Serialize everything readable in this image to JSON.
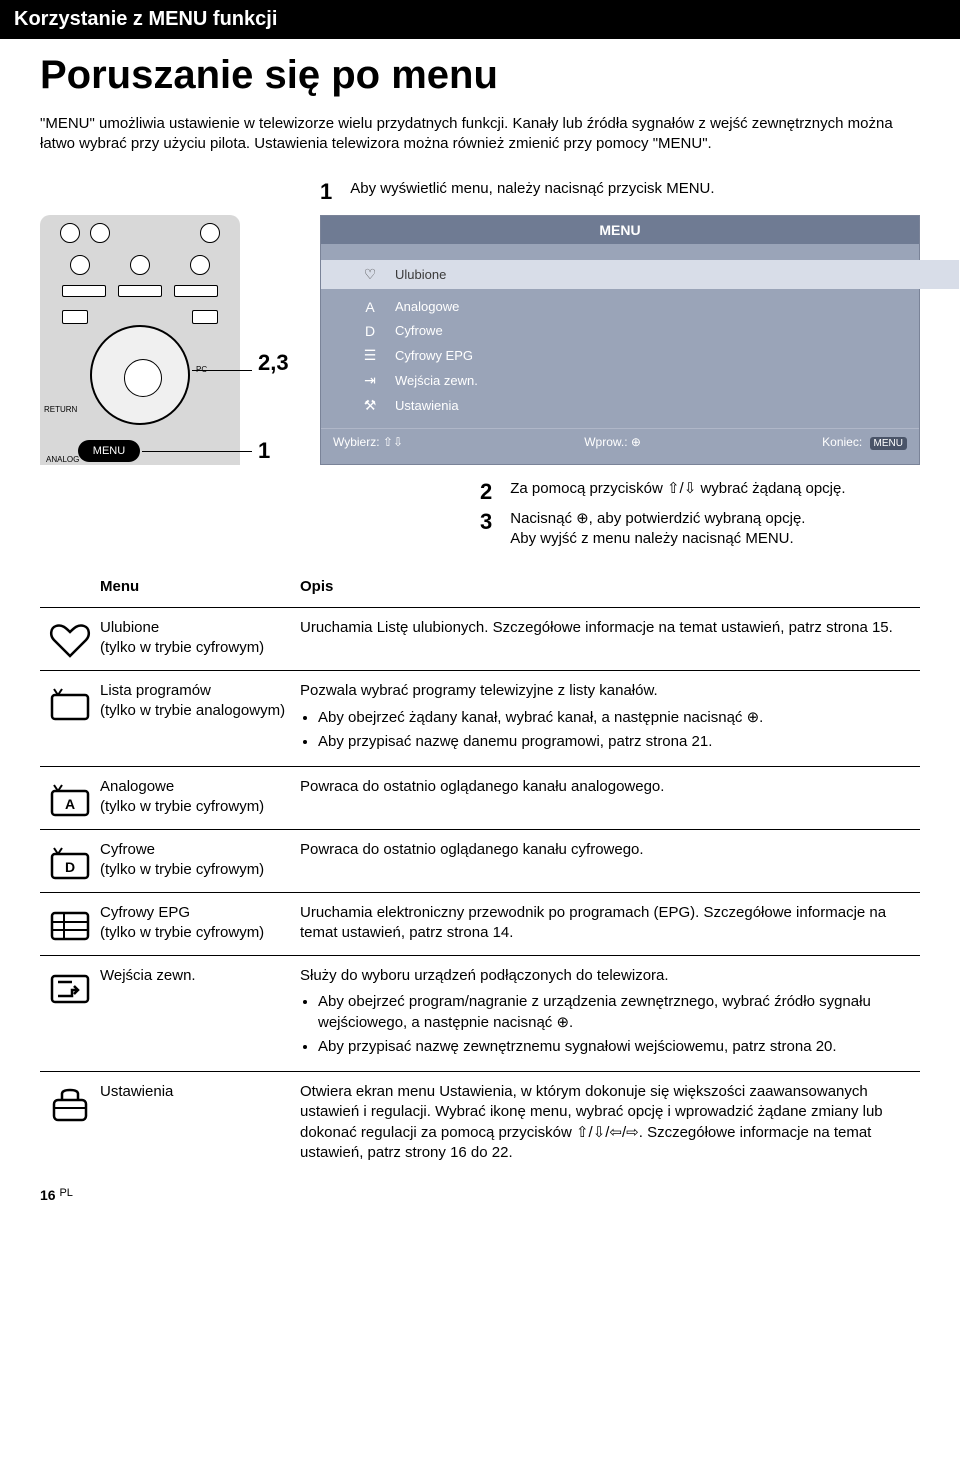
{
  "section_header": "Korzystanie z MENU funkcji",
  "title": "Poruszanie się po menu",
  "intro": "\"MENU\" umożliwia ustawienie w telewizorze wielu przydatnych funkcji. Kanały lub źródła sygnałów z wejść zewnętrznych można łatwo wybrać przy użyciu pilota. Ustawienia telewizora można również zmienić przy pomocy \"MENU\".",
  "step1_num": "1",
  "step1_text": "Aby wyświetlić menu, należy nacisnąć przycisk MENU.",
  "remote": {
    "return": "RETURN",
    "pc": "PC",
    "analog": "ANALOG",
    "menu": "MENU",
    "c23": "2,3",
    "c1": "1"
  },
  "menu_panel": {
    "title": "MENU",
    "items": [
      {
        "icon": "♡",
        "label": "Ulubione",
        "selected": true
      },
      {
        "icon": "A",
        "label": "Analogowe",
        "selected": false
      },
      {
        "icon": "D",
        "label": "Cyfrowe",
        "selected": false
      },
      {
        "icon": "☰",
        "label": "Cyfrowy EPG",
        "selected": false
      },
      {
        "icon": "⇥",
        "label": "Wejścia zewn.",
        "selected": false
      },
      {
        "icon": "⚒",
        "label": "Ustawienia",
        "selected": false
      }
    ],
    "footer_select": "Wybierz:",
    "footer_select_icon": "⇧⇩",
    "footer_enter": "Wprow.:",
    "footer_enter_icon": "⊕",
    "footer_exit": "Koniec:",
    "footer_exit_pill": "MENU"
  },
  "step2_num": "2",
  "step2_text": "Za pomocą przycisków ⇧/⇩ wybrać żądaną opcję.",
  "step3_num": "3",
  "step3_text_a": "Nacisnąć ⊕, aby potwierdzić wybraną opcję.",
  "step3_text_b": "Aby wyjść z menu należy nacisnąć MENU.",
  "table_headers": {
    "menu": "Menu",
    "opis": "Opis"
  },
  "rows": [
    {
      "name": "Ulubione",
      "note": "(tylko w trybie cyfrowym)",
      "desc": "Uruchamia Listę ulubionych. Szczegółowe informacje na temat ustawień, patrz strona 15.",
      "icon": "heart"
    },
    {
      "name": "Lista programów",
      "note": "(tylko w trybie analogowym)",
      "desc": "Pozwala wybrać programy telewizyjne z listy kanałów.",
      "bullets": [
        "Aby obejrzeć żądany kanał, wybrać kanał, a następnie nacisnąć ⊕.",
        "Aby przypisać nazwę danemu programowi, patrz strona 21."
      ],
      "icon": "tv"
    },
    {
      "name": "Analogowe",
      "note": "(tylko w trybie cyfrowym)",
      "desc": "Powraca do ostatnio oglądanego kanału analogowego.",
      "icon": "tvA"
    },
    {
      "name": "Cyfrowe",
      "note": "(tylko w trybie cyfrowym)",
      "desc": "Powraca do ostatnio oglądanego kanału cyfrowego.",
      "icon": "tvD"
    },
    {
      "name": "Cyfrowy EPG",
      "note": "(tylko w trybie cyfrowym)",
      "desc": "Uruchamia elektroniczny przewodnik po programach (EPG). Szczegółowe informacje na temat ustawień, patrz strona 14.",
      "icon": "epg"
    },
    {
      "name": "Wejścia zewn.",
      "note": "",
      "desc": "Służy do wyboru urządzeń podłączonych do telewizora.",
      "bullets": [
        "Aby obejrzeć program/nagranie z urządzenia zewnętrznego, wybrać źródło sygnału wejściowego, a następnie nacisnąć ⊕.",
        "Aby przypisać nazwę zewnętrznemu sygnałowi wejściowemu, patrz strona 20."
      ],
      "icon": "ext"
    },
    {
      "name": "Ustawienia",
      "note": "",
      "desc": "Otwiera ekran menu Ustawienia, w którym dokonuje się większości zaawansowanych ustawień i regulacji. Wybrać ikonę menu, wybrać opcję i wprowadzić żądane zmiany lub dokonać regulacji za pomocą przycisków ⇧/⇩/⇦/⇨. Szczegółowe informacje na temat ustawień, patrz strony 16 do 22.",
      "icon": "tool"
    }
  ],
  "page_num": "16",
  "page_lang": "PL"
}
